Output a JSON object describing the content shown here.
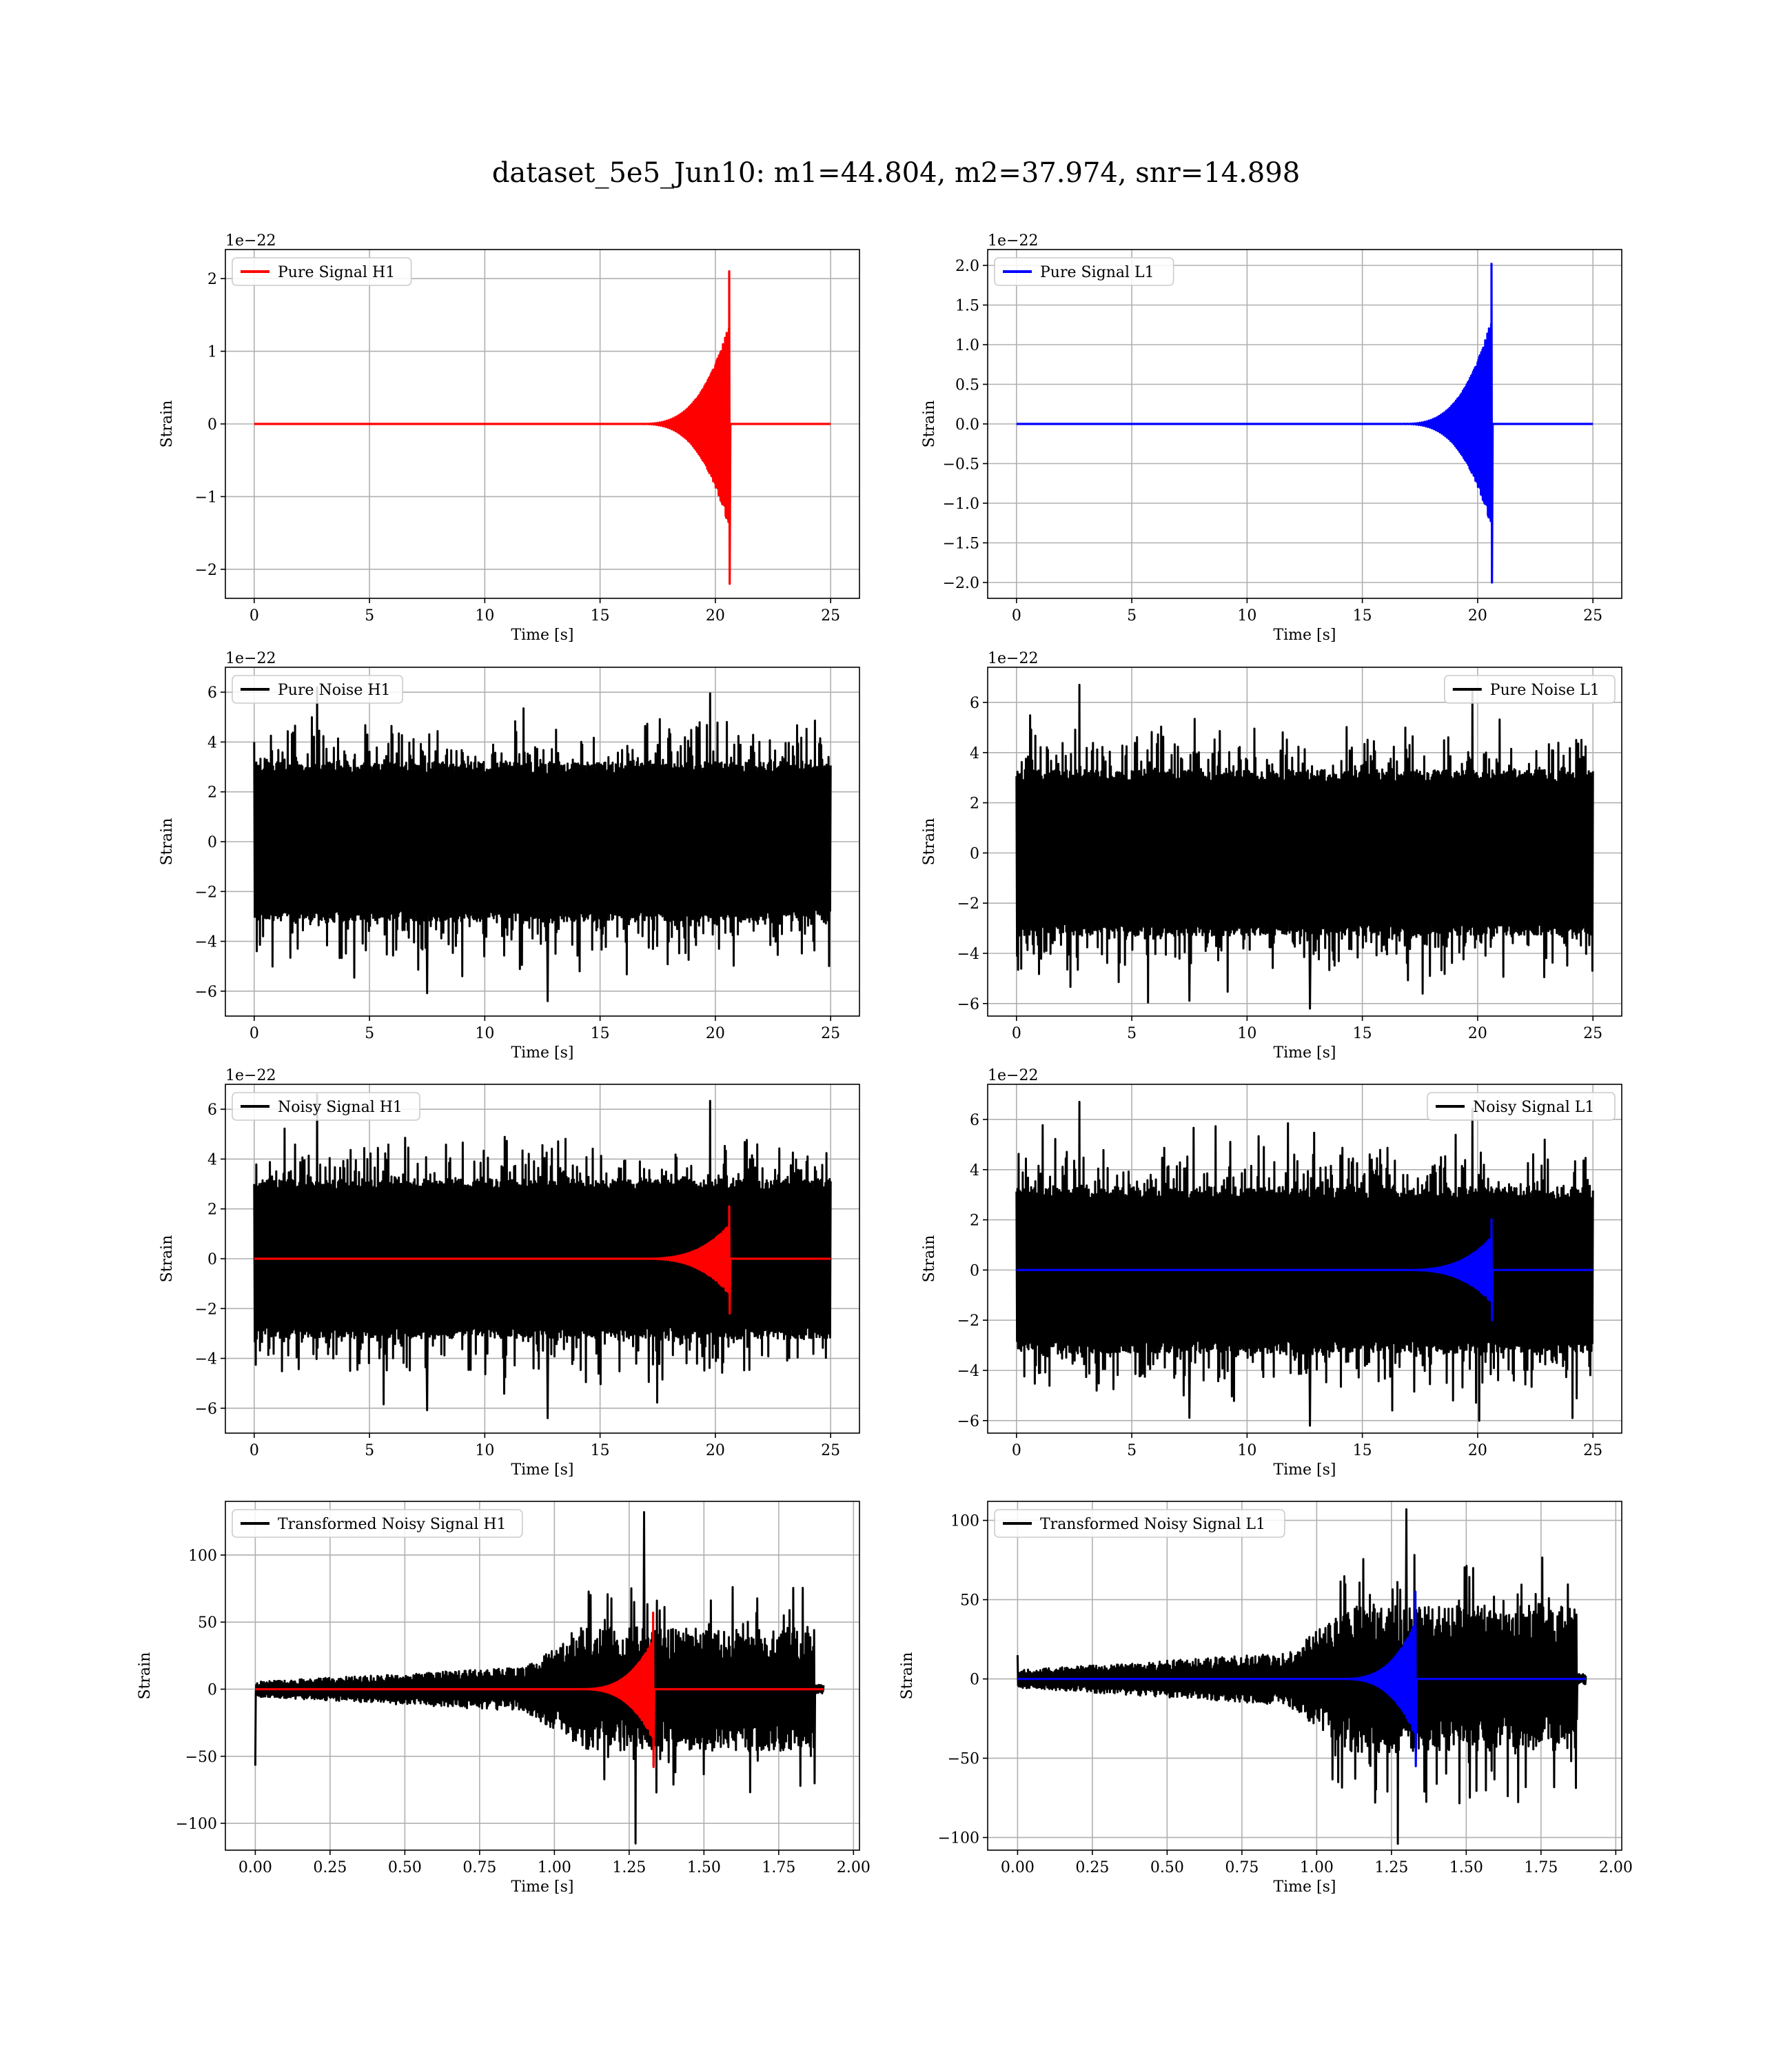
{
  "figure": {
    "title": "dataset_5e5_Jun10: m1=44.804, m2=37.974, snr=14.898"
  },
  "chart_data": [
    {
      "id": "pure-signal-h1",
      "type": "line",
      "xlabel": "Time [s]",
      "ylabel": "Strain",
      "offset_text": "1e−22",
      "xlim": [
        -1.25,
        26.25
      ],
      "ylim": [
        -2.4,
        2.4
      ],
      "xticks": [
        0,
        5,
        10,
        15,
        20,
        25
      ],
      "yticks": [
        -2,
        -1,
        0,
        1,
        2
      ],
      "xtick_labels": [
        "0",
        "5",
        "10",
        "15",
        "20",
        "25"
      ],
      "ytick_labels": [
        "−2",
        "−1",
        "0",
        "1",
        "2"
      ],
      "legend": {
        "position": "upper left",
        "entries": [
          {
            "label": "Pure Signal H1",
            "color": "#ff0000"
          }
        ]
      },
      "series": [
        {
          "name": "Pure Signal H1",
          "kind": "chirp",
          "color": "#ff0000",
          "x_range": [
            0,
            25
          ],
          "merger_x": 20.6,
          "peak": 2.1,
          "trough": -2.2,
          "tail": 0.0
        }
      ]
    },
    {
      "id": "pure-signal-l1",
      "type": "line",
      "xlabel": "Time [s]",
      "ylabel": "Strain",
      "offset_text": "1e−22",
      "xlim": [
        -1.25,
        26.25
      ],
      "ylim": [
        -2.2,
        2.2
      ],
      "xticks": [
        0,
        5,
        10,
        15,
        20,
        25
      ],
      "yticks": [
        -2.0,
        -1.5,
        -1.0,
        -0.5,
        0.0,
        0.5,
        1.0,
        1.5,
        2.0
      ],
      "xtick_labels": [
        "0",
        "5",
        "10",
        "15",
        "20",
        "25"
      ],
      "ytick_labels": [
        "−2.0",
        "−1.5",
        "−1.0",
        "−0.5",
        "0.0",
        "0.5",
        "1.0",
        "1.5",
        "2.0"
      ],
      "legend": {
        "position": "upper left",
        "entries": [
          {
            "label": "Pure Signal L1",
            "color": "#0000ff"
          }
        ]
      },
      "series": [
        {
          "name": "Pure Signal L1",
          "kind": "chirp",
          "color": "#0000ff",
          "x_range": [
            0,
            25
          ],
          "merger_x": 20.6,
          "peak": 2.02,
          "trough": -2.0,
          "tail": 0.0
        }
      ]
    },
    {
      "id": "pure-noise-h1",
      "type": "line",
      "xlabel": "Time [s]",
      "ylabel": "Strain",
      "offset_text": "1e−22",
      "xlim": [
        -1.25,
        26.25
      ],
      "ylim": [
        -7,
        7
      ],
      "xticks": [
        0,
        5,
        10,
        15,
        20,
        25
      ],
      "yticks": [
        -6,
        -4,
        -2,
        0,
        2,
        4,
        6
      ],
      "xtick_labels": [
        "0",
        "5",
        "10",
        "15",
        "20",
        "25"
      ],
      "ytick_labels": [
        "−6",
        "−4",
        "−2",
        "0",
        "2",
        "4",
        "6"
      ],
      "legend": {
        "position": "upper left",
        "entries": [
          {
            "label": "Pure Noise H1",
            "color": "#000000"
          }
        ]
      },
      "series": [
        {
          "name": "Pure Noise H1",
          "kind": "noise",
          "color": "#000000",
          "x_range": [
            0,
            25
          ],
          "body": 3.2,
          "spike_max": 6.2,
          "spike_min": -6.4
        }
      ]
    },
    {
      "id": "pure-noise-l1",
      "type": "line",
      "xlabel": "Time [s]",
      "ylabel": "Strain",
      "offset_text": "1e−22",
      "xlim": [
        -1.25,
        26.25
      ],
      "ylim": [
        -6.5,
        7.4
      ],
      "xticks": [
        0,
        5,
        10,
        15,
        20,
        25
      ],
      "yticks": [
        -6,
        -4,
        -2,
        0,
        2,
        4,
        6
      ],
      "xtick_labels": [
        "0",
        "5",
        "10",
        "15",
        "20",
        "25"
      ],
      "ytick_labels": [
        "−6",
        "−4",
        "−2",
        "0",
        "2",
        "4",
        "6"
      ],
      "legend": {
        "position": "upper right",
        "entries": [
          {
            "label": "Pure Noise L1",
            "color": "#000000"
          }
        ]
      },
      "series": [
        {
          "name": "Pure Noise L1",
          "kind": "noise",
          "color": "#000000",
          "x_range": [
            0,
            25
          ],
          "body": 3.3,
          "spike_max": 6.7,
          "spike_min": -6.2
        }
      ]
    },
    {
      "id": "noisy-signal-h1",
      "type": "line",
      "xlabel": "Time [s]",
      "ylabel": "Strain",
      "offset_text": "1e−22",
      "xlim": [
        -1.25,
        26.25
      ],
      "ylim": [
        -7,
        7
      ],
      "xticks": [
        0,
        5,
        10,
        15,
        20,
        25
      ],
      "yticks": [
        -6,
        -4,
        -2,
        0,
        2,
        4,
        6
      ],
      "xtick_labels": [
        "0",
        "5",
        "10",
        "15",
        "20",
        "25"
      ],
      "ytick_labels": [
        "−6",
        "−4",
        "−2",
        "0",
        "2",
        "4",
        "6"
      ],
      "legend": {
        "position": "upper left",
        "entries": [
          {
            "label": "Noisy Signal H1",
            "color": "#000000"
          }
        ]
      },
      "series": [
        {
          "name": "Noisy Signal H1",
          "kind": "noise",
          "color": "#000000",
          "x_range": [
            0,
            25
          ],
          "body": 3.2,
          "spike_max": 6.6,
          "spike_min": -6.4
        },
        {
          "kind": "chirp",
          "color": "#ff0000",
          "x_range": [
            0,
            25
          ],
          "merger_x": 20.6,
          "peak": 2.1,
          "trough": -2.2,
          "tail": 0.0
        }
      ]
    },
    {
      "id": "noisy-signal-l1",
      "type": "line",
      "xlabel": "Time [s]",
      "ylabel": "Strain",
      "offset_text": "1e−22",
      "xlim": [
        -1.25,
        26.25
      ],
      "ylim": [
        -6.5,
        7.4
      ],
      "xticks": [
        0,
        5,
        10,
        15,
        20,
        25
      ],
      "yticks": [
        -6,
        -4,
        -2,
        0,
        2,
        4,
        6
      ],
      "xtick_labels": [
        "0",
        "5",
        "10",
        "15",
        "20",
        "25"
      ],
      "ytick_labels": [
        "−6",
        "−4",
        "−2",
        "0",
        "2",
        "4",
        "6"
      ],
      "legend": {
        "position": "upper right",
        "entries": [
          {
            "label": "Noisy Signal L1",
            "color": "#000000"
          }
        ]
      },
      "series": [
        {
          "name": "Noisy Signal L1",
          "kind": "noise",
          "color": "#000000",
          "x_range": [
            0,
            25
          ],
          "body": 3.3,
          "spike_max": 6.7,
          "spike_min": -6.2
        },
        {
          "kind": "chirp",
          "color": "#0000ff",
          "x_range": [
            0,
            25
          ],
          "merger_x": 20.6,
          "peak": 2.02,
          "trough": -2.0,
          "tail": 0.0
        }
      ]
    },
    {
      "id": "transformed-noisy-signal-h1",
      "type": "line",
      "xlabel": "Time [s]",
      "ylabel": "Strain",
      "offset_text": "",
      "xlim": [
        -0.1,
        2.02
      ],
      "ylim": [
        -120,
        140
      ],
      "xticks": [
        0,
        0.25,
        0.5,
        0.75,
        1.0,
        1.25,
        1.5,
        1.75,
        2.0
      ],
      "yticks": [
        -100,
        -50,
        0,
        50,
        100
      ],
      "xtick_labels": [
        "0.00",
        "0.25",
        "0.50",
        "0.75",
        "1.00",
        "1.25",
        "1.50",
        "1.75",
        "2.00"
      ],
      "ytick_labels": [
        "−100",
        "−50",
        "0",
        "50",
        "100"
      ],
      "legend": {
        "position": "upper left",
        "entries": [
          {
            "label": "Transformed Noisy Signal H1",
            "color": "#000000"
          }
        ]
      },
      "series": [
        {
          "name": "Transformed Noisy Signal H1",
          "kind": "whitened",
          "color": "#000000",
          "x_range": [
            0,
            1.9
          ],
          "spike_max": 132,
          "spike_min": -115,
          "start_spike": -57
        },
        {
          "kind": "chirp",
          "color": "#ff0000",
          "x_range": [
            0,
            1.9
          ],
          "merger_x": 1.33,
          "peak": 57,
          "trough": -58,
          "tail": 0.0
        }
      ]
    },
    {
      "id": "transformed-noisy-signal-l1",
      "type": "line",
      "xlabel": "Time [s]",
      "ylabel": "Strain",
      "offset_text": "",
      "xlim": [
        -0.1,
        2.02
      ],
      "ylim": [
        -108,
        112
      ],
      "xticks": [
        0,
        0.25,
        0.5,
        0.75,
        1.0,
        1.25,
        1.5,
        1.75,
        2.0
      ],
      "yticks": [
        -100,
        -50,
        0,
        50,
        100
      ],
      "xtick_labels": [
        "0.00",
        "0.25",
        "0.50",
        "0.75",
        "1.00",
        "1.25",
        "1.50",
        "1.75",
        "2.00"
      ],
      "ytick_labels": [
        "−100",
        "−50",
        "0",
        "50",
        "100"
      ],
      "legend": {
        "position": "upper left",
        "entries": [
          {
            "label": "Transformed Noisy Signal L1",
            "color": "#000000"
          }
        ]
      },
      "series": [
        {
          "name": "Transformed Noisy Signal L1",
          "kind": "whitened",
          "color": "#000000",
          "x_range": [
            0,
            1.9
          ],
          "spike_max": 107,
          "spike_min": -104,
          "start_spike": 15
        },
        {
          "kind": "chirp",
          "color": "#0000ff",
          "x_range": [
            0,
            1.9
          ],
          "merger_x": 1.33,
          "peak": 55,
          "trough": -55,
          "tail": 0.0
        }
      ]
    }
  ]
}
